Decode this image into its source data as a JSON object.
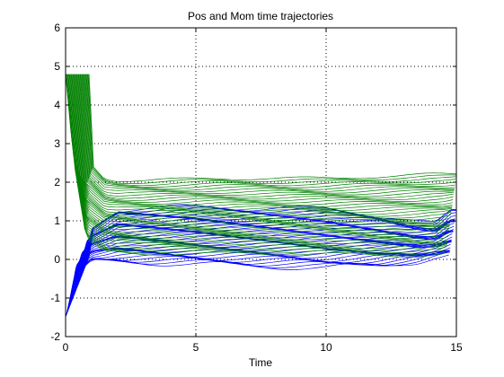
{
  "chart_data": {
    "type": "line",
    "title": "Pos and Mom time trajectories",
    "xlabel": "Time",
    "ylabel": "",
    "xlim": [
      0,
      15
    ],
    "ylim": [
      -2,
      6
    ],
    "xticks": [
      "0",
      "5",
      "10",
      "15"
    ],
    "yticks": [
      "-2",
      "-1",
      "0",
      "1",
      "2",
      "3",
      "4",
      "5",
      "6"
    ],
    "grid": "dotted",
    "legend": "none",
    "series": [
      {
        "color": "#0000ff",
        "family_count": 40,
        "lower_envelope": {
          "x": [
            0,
            0.4,
            1,
            2,
            5,
            10,
            12,
            13.5,
            14.2,
            14.8
          ],
          "y": [
            -1.5,
            -0.4,
            -0.05,
            -0.05,
            -0.12,
            -0.22,
            -0.15,
            -0.05,
            0.05,
            0.1
          ]
        },
        "upper_envelope": {
          "x": [
            0,
            0.4,
            1,
            2,
            5,
            10,
            12,
            13.5,
            14.2,
            14.8
          ],
          "y": [
            0.05,
            0.4,
            0.8,
            1.3,
            1.35,
            1.3,
            1.15,
            0.95,
            0.9,
            1.25
          ]
        }
      },
      {
        "color": "#008000",
        "family_count": 40,
        "lower_envelope": {
          "x": [
            0,
            0.3,
            0.8,
            1.5,
            3,
            6,
            10,
            12,
            13.5,
            14.5,
            15
          ],
          "y": [
            4.8,
            2.6,
            0.5,
            0.2,
            0.15,
            0.15,
            0.15,
            0.1,
            0.1,
            0.15,
            0.3
          ]
        },
        "upper_envelope": {
          "x": [
            0,
            0.3,
            0.8,
            1.5,
            2,
            3,
            6,
            10,
            12,
            14,
            15
          ],
          "y": [
            4.8,
            3.6,
            2.6,
            2.1,
            2.05,
            2.05,
            2.1,
            2.1,
            2.15,
            2.2,
            2.2
          ]
        }
      }
    ]
  }
}
